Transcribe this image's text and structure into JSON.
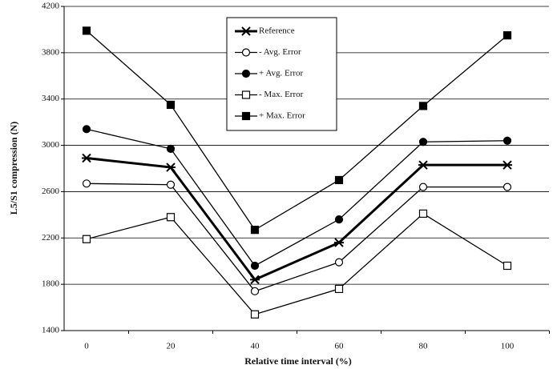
{
  "chart_data": {
    "type": "line",
    "x_label": "Relative time interval (%)",
    "y_label": "L5/S1 compression (N)",
    "categories": [
      "0",
      "20",
      "40",
      "60",
      "80",
      "100"
    ],
    "ylim": [
      1400,
      4200
    ],
    "yticks": [
      1400,
      1800,
      2200,
      2600,
      3000,
      3400,
      3800,
      4200
    ],
    "grid": true,
    "legend": "top-center",
    "series": [
      {
        "name": "Reference",
        "color": "#000000",
        "marker": "star",
        "values": [
          2890,
          2810,
          1840,
          2160,
          2830,
          2830
        ]
      },
      {
        "name": "- Avg. Error",
        "color": "#000000",
        "marker": "open-circle",
        "values": [
          2670,
          2660,
          1740,
          1990,
          2640,
          2640
        ]
      },
      {
        "name": "+ Avg. Error",
        "color": "#000000",
        "marker": "filled-circle",
        "values": [
          3140,
          2970,
          1960,
          2360,
          3030,
          3040
        ]
      },
      {
        "name": "- Max. Error",
        "color": "#000000",
        "marker": "open-square",
        "values": [
          2190,
          2380,
          1540,
          1760,
          2410,
          1960
        ]
      },
      {
        "name": "+ Max. Error",
        "color": "#000000",
        "marker": "filled-square",
        "values": [
          3990,
          3350,
          2270,
          2700,
          3340,
          3950
        ]
      }
    ]
  }
}
